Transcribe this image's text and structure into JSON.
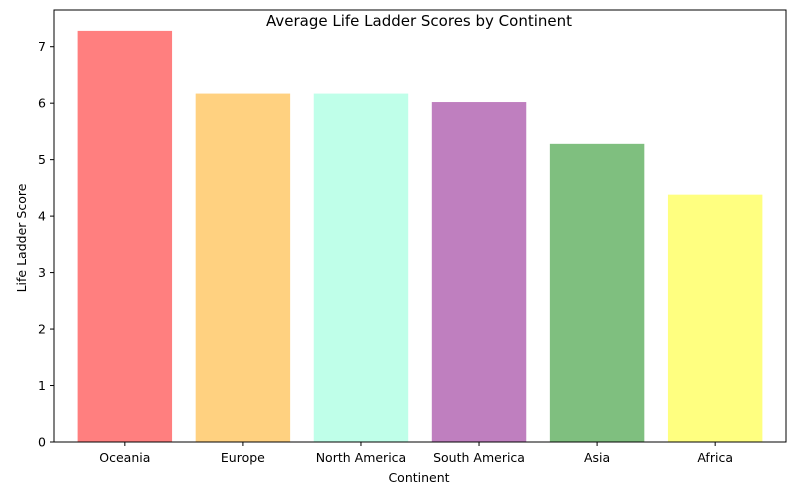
{
  "chart_data": {
    "type": "bar",
    "title": "Average Life Ladder Scores by Continent",
    "xlabel": "Continent",
    "ylabel": "Life Ladder Score",
    "categories": [
      "Oceania",
      "Europe",
      "North America",
      "South America",
      "Asia",
      "Africa"
    ],
    "values": [
      7.28,
      6.17,
      6.17,
      6.02,
      5.28,
      4.38
    ],
    "colors": [
      "#ff7f7f",
      "#ffd180",
      "#bfffe9",
      "#bf7fbf",
      "#7fbf7f",
      "#ffff80"
    ],
    "ylim": [
      0,
      7.65
    ],
    "yticks": [
      0,
      1,
      2,
      3,
      4,
      5,
      6,
      7
    ],
    "grid": false,
    "legend": "none"
  }
}
